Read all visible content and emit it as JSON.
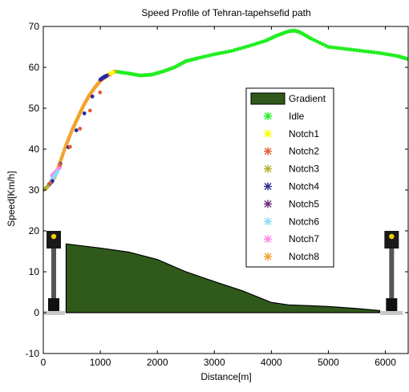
{
  "chart_data": {
    "type": "line",
    "title": "Speed Profile of Tehran-tapehsefid path",
    "xlabel": "Distance[m]",
    "ylabel": "Speed[Km/h]",
    "xlim": [
      0,
      6400
    ],
    "ylim": [
      -10,
      70
    ],
    "xticks": [
      0,
      1000,
      2000,
      3000,
      4000,
      5000,
      6000
    ],
    "yticks": [
      -10,
      0,
      10,
      20,
      30,
      40,
      50,
      60,
      70
    ],
    "grid": false,
    "legend_position": "center-right",
    "legend": [
      {
        "label": "Gradient",
        "color": "#2f5a1b",
        "marker": "patch"
      },
      {
        "label": "Idle",
        "color": "#22ee22",
        "marker": "*"
      },
      {
        "label": "Notch1",
        "color": "#ffff00",
        "marker": "*"
      },
      {
        "label": "Notch2",
        "color": "#e0603a",
        "marker": "*"
      },
      {
        "label": "Notch3",
        "color": "#b0b030",
        "marker": "*"
      },
      {
        "label": "Notch4",
        "color": "#2a2a9a",
        "marker": "*"
      },
      {
        "label": "Notch5",
        "color": "#6a2a7a",
        "marker": "*"
      },
      {
        "label": "Notch6",
        "color": "#88ddf5",
        "marker": "*"
      },
      {
        "label": "Notch7",
        "color": "#ff88ee",
        "marker": "*"
      },
      {
        "label": "Notch8",
        "color": "#f2a22e",
        "marker": "*"
      }
    ],
    "series": [
      {
        "name": "Gradient",
        "type": "area",
        "color": "#2f5a1b",
        "x": [
          400,
          1000,
          1500,
          2000,
          2500,
          3000,
          3500,
          4000,
          4300,
          4500,
          5000,
          5500,
          5900
        ],
        "values": [
          16.8,
          15.8,
          14.8,
          13.0,
          10.0,
          7.6,
          5.3,
          2.5,
          1.9,
          1.8,
          1.5,
          1.0,
          0.5
        ]
      },
      {
        "name": "Idle",
        "color": "#22ee22",
        "x": [
          1250,
          1500,
          1700,
          1900,
          2100,
          2300,
          2500,
          2700,
          3000,
          3300,
          3600,
          3900,
          4100,
          4300,
          4400,
          4500,
          4700,
          5000,
          5300,
          5600,
          5900,
          6200,
          6400
        ],
        "values": [
          59.0,
          58.5,
          58.0,
          58.2,
          59.0,
          60.0,
          61.5,
          62.2,
          63.2,
          64.0,
          65.2,
          66.5,
          67.8,
          68.8,
          69.0,
          68.6,
          67.0,
          65.0,
          64.5,
          64.0,
          63.5,
          62.8,
          62.0
        ]
      },
      {
        "name": "Notch8",
        "color": "#f2a22e",
        "x": [
          200,
          300,
          400,
          500,
          600,
          700,
          800,
          900,
          1000,
          1100,
          1200,
          1250
        ],
        "values": [
          33.0,
          37.0,
          41.0,
          44.5,
          47.5,
          50.5,
          53.0,
          55.0,
          56.7,
          57.8,
          58.6,
          59.0
        ]
      },
      {
        "name": "Notch7",
        "color": "#ff88ee",
        "x": [
          150,
          220,
          290
        ],
        "values": [
          33.5,
          34.5,
          35.5
        ]
      },
      {
        "name": "Notch6",
        "color": "#88ddf5",
        "x": [
          150,
          200,
          250
        ],
        "values": [
          32.5,
          33.5,
          34.5
        ]
      },
      {
        "name": "Notch5",
        "color": "#6a2a7a",
        "x": [
          1080,
          1120
        ],
        "values": [
          57.6,
          58.0
        ]
      },
      {
        "name": "Notch4",
        "color": "#2a2a9a",
        "x": [
          100,
          160,
          1000,
          1050,
          1100
        ],
        "values": [
          31.3,
          32.2,
          57.0,
          57.5,
          57.9
        ]
      },
      {
        "name": "Notch3",
        "color": "#b0b030",
        "x": [
          0,
          40,
          80
        ],
        "values": [
          30.0,
          30.4,
          30.9
        ]
      },
      {
        "name": "Notch2",
        "color": "#e0603a",
        "x": [
          120,
          1170
        ],
        "values": [
          31.7,
          58.3
        ]
      },
      {
        "name": "Notch1",
        "color": "#ffff00",
        "x": [
          1180,
          1220
        ],
        "values": [
          58.5,
          58.8
        ]
      }
    ]
  }
}
